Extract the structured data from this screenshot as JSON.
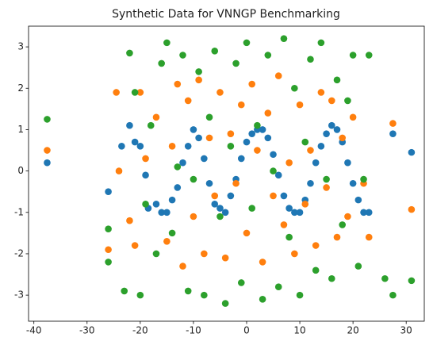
{
  "chart_data": {
    "type": "scatter",
    "title": "Synthetic Data for VNNGP Benchmarking",
    "xlim": [
      -41,
      33.4
    ],
    "xticks": [
      -40,
      -30,
      -20,
      -10,
      0,
      10,
      20,
      30
    ],
    "ylim": [
      -3.63,
      3.5
    ],
    "yticks": [
      -3,
      -2,
      -1,
      0,
      1,
      2,
      3
    ],
    "series": [
      {
        "color": "#1f77b4",
        "x": [
          -37.5,
          -26,
          -23.5,
          -22,
          -21,
          -20,
          -19,
          -18.5,
          -17,
          -16,
          -15,
          -14,
          -13,
          -12,
          -11,
          -10,
          -9,
          -8,
          -7,
          -6,
          -5,
          -4,
          -3,
          -2,
          -1,
          0,
          1,
          2,
          3,
          4,
          5,
          6,
          7,
          8,
          9,
          10,
          11,
          12,
          13,
          14,
          15,
          16,
          17,
          18,
          19,
          20,
          21,
          22,
          23,
          27.5,
          31
        ],
        "values": [
          0.2,
          -0.5,
          0.6,
          1.1,
          0.7,
          0.6,
          -0.1,
          -0.9,
          -0.8,
          -1.0,
          -1.0,
          -0.7,
          -0.4,
          0.2,
          0.6,
          1.0,
          0.8,
          0.3,
          -0.3,
          -0.8,
          -0.9,
          -1.0,
          -0.6,
          -0.2,
          0.3,
          0.7,
          0.9,
          1.0,
          1.0,
          0.8,
          0.4,
          -0.1,
          -0.6,
          -0.9,
          -1.0,
          -1.0,
          -0.7,
          -0.3,
          0.2,
          0.6,
          0.9,
          1.1,
          1.0,
          0.7,
          0.2,
          -0.3,
          -0.7,
          -1.0,
          -1.0,
          0.9,
          0.45
        ]
      },
      {
        "color": "#ff7f0e",
        "x": [
          -37.5,
          -26,
          -24.5,
          -24,
          -22,
          -21,
          -20,
          -19,
          -17,
          -15,
          -14,
          -13,
          -12,
          -11,
          -10,
          -9,
          -8,
          -7,
          -6,
          -5,
          -4,
          -3,
          -2,
          -1,
          0,
          1,
          2,
          3,
          4,
          5,
          6,
          7,
          8,
          9,
          10,
          11,
          12,
          13,
          14,
          15,
          16,
          17,
          18,
          19,
          20,
          22,
          23,
          27.5,
          31
        ],
        "values": [
          0.5,
          -1.9,
          1.9,
          0,
          -1.2,
          -1.8,
          1.9,
          0.3,
          1.3,
          -1.7,
          0.6,
          2.1,
          -2.3,
          1.7,
          -1.1,
          2.2,
          -2.0,
          0.8,
          -0.6,
          1.9,
          -2.1,
          0.9,
          -0.3,
          1.6,
          -1.5,
          2.1,
          0.5,
          -2.2,
          1.4,
          -0.6,
          2.3,
          -1.3,
          0.2,
          -2.0,
          1.6,
          -0.8,
          0.5,
          -1.8,
          1.9,
          -0.4,
          1.7,
          -1.6,
          0.8,
          -1.1,
          1.3,
          -0.3,
          -1.6,
          1.15,
          -0.93
        ]
      },
      {
        "color": "#2ca02c",
        "x": [
          -37.5,
          -26,
          -26,
          -23,
          -22,
          -21,
          -20,
          -19,
          -18,
          -17,
          -16,
          -15,
          -14,
          -13,
          -12,
          -11,
          -10,
          -9,
          -8,
          -7,
          -6,
          -5,
          -4,
          -3,
          -2,
          -1,
          0,
          1,
          2,
          3,
          4,
          5,
          6,
          7,
          8,
          9,
          10,
          11,
          12,
          13,
          14,
          15,
          16,
          17,
          18,
          19,
          20,
          21,
          22,
          23,
          26,
          27.5,
          31
        ],
        "values": [
          1.25,
          -2.2,
          -1.4,
          -2.9,
          2.85,
          1.9,
          -3.0,
          -0.8,
          1.1,
          -2.0,
          2.6,
          3.1,
          -1.5,
          0.1,
          2.8,
          -2.9,
          -0.2,
          2.4,
          -3.0,
          1.3,
          2.9,
          -1.1,
          -3.2,
          0.6,
          2.6,
          -2.7,
          3.1,
          -0.9,
          1.1,
          -3.1,
          2.8,
          0.0,
          -2.8,
          3.2,
          -1.6,
          2.0,
          -3.0,
          0.7,
          2.7,
          -2.4,
          3.1,
          -0.2,
          -2.6,
          2.2,
          -1.3,
          1.7,
          2.8,
          -2.3,
          -0.2,
          2.8,
          -2.6,
          -3.0,
          -2.65
        ]
      }
    ]
  }
}
